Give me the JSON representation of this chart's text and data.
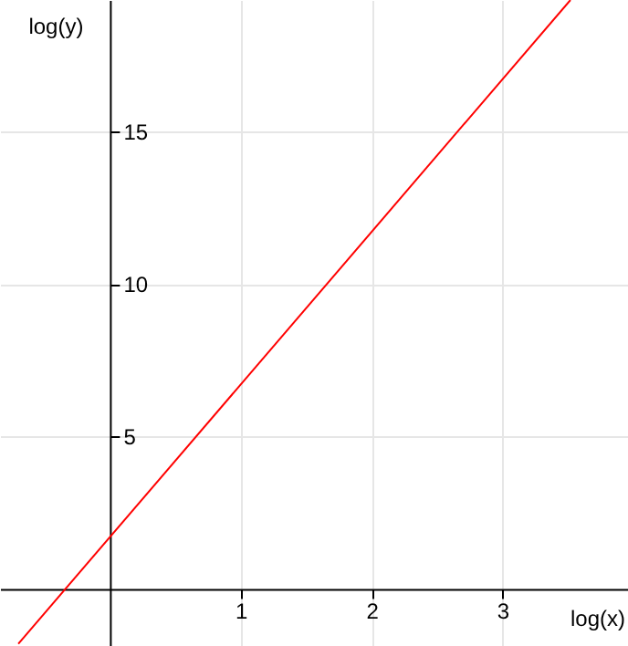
{
  "chart_data": {
    "type": "line",
    "xlabel": "log(x)",
    "ylabel": "log(y)",
    "x": [
      -0.7,
      3.52
    ],
    "series": [
      {
        "color": "#ff0000",
        "values": [
          -1.8,
          19.3
        ]
      }
    ],
    "xlim": [
      -0.84,
      3.96
    ],
    "ylim": [
      -1.87,
      19.3
    ],
    "xticks": [
      1,
      2,
      3
    ],
    "yticks": [
      5,
      10,
      15
    ],
    "grid": true
  }
}
